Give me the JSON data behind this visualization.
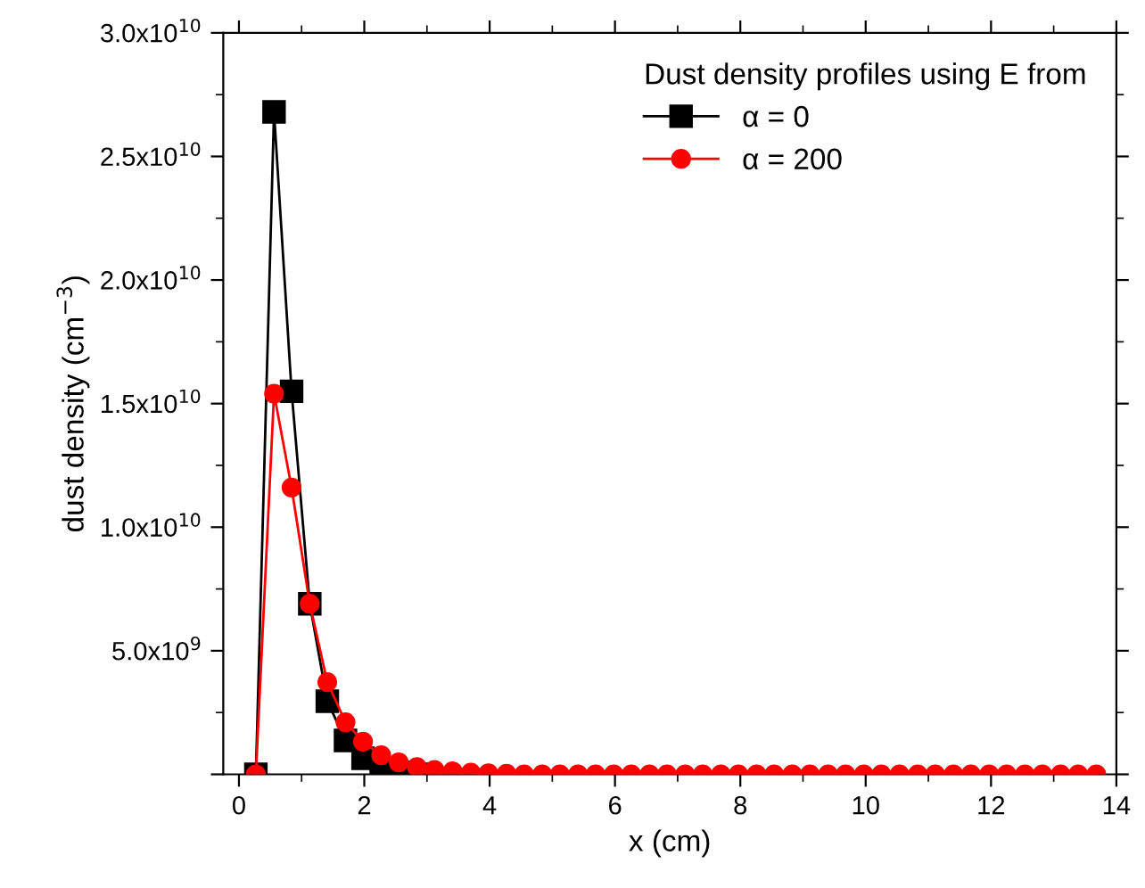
{
  "chart_data": {
    "type": "line",
    "xlabel": "x (cm)",
    "ylabel": "dust density (cm$^{−3}$)",
    "legend_title": "Dust density profiles using E from",
    "x": [
      0.27,
      0.56,
      0.84,
      1.13,
      1.41,
      1.7,
      1.98,
      2.27,
      2.55,
      2.84,
      3.12,
      3.41,
      3.7,
      3.98,
      4.27,
      4.55,
      4.84,
      5.12,
      5.41,
      5.69,
      5.98,
      6.26,
      6.55,
      6.83,
      7.12,
      7.4,
      7.69,
      7.97,
      8.26,
      8.54,
      8.83,
      9.11,
      9.4,
      9.68,
      9.97,
      10.25,
      10.54,
      10.83,
      11.11,
      11.4,
      11.68,
      11.97,
      12.25,
      12.54,
      12.82,
      13.11,
      13.39,
      13.68
    ],
    "series": [
      {
        "name": "α = 0",
        "color": "#000000",
        "marker": "square",
        "values": [
          0,
          26800000000.0,
          15500000000.0,
          6900000000.0,
          2960000000.0,
          1370000000.0,
          650000000.0,
          220000000.0,
          80000000.0,
          0,
          null,
          null,
          null,
          null,
          null,
          null,
          null,
          null,
          null,
          null,
          null,
          null,
          null,
          null,
          null,
          null,
          null,
          null,
          null,
          null,
          null,
          null,
          null,
          null,
          null,
          null,
          null,
          null,
          null,
          null,
          null,
          null,
          null,
          null,
          null,
          null,
          null,
          null
        ]
      },
      {
        "name": "α = 200",
        "color": "#ff0000",
        "marker": "circle",
        "values": [
          0,
          15400000000.0,
          11600000000.0,
          6900000000.0,
          3730000000.0,
          2110000000.0,
          1320000000.0,
          770000000.0,
          480000000.0,
          290000000.0,
          180000000.0,
          120000000.0,
          70000000.0,
          40000000.0,
          20000000.0,
          0,
          0,
          0,
          0,
          0,
          0,
          0,
          0,
          0,
          0,
          0,
          0,
          0,
          0,
          0,
          0,
          0,
          0,
          0,
          0,
          0,
          0,
          0,
          0,
          0,
          0,
          0,
          0,
          0,
          0,
          0,
          0,
          0
        ]
      }
    ],
    "xlim": [
      -0.25,
      14
    ],
    "xticks": [
      0,
      2,
      4,
      6,
      8,
      10,
      12,
      14
    ],
    "ylim": [
      0,
      30000000000.0
    ],
    "yticks": [
      {
        "value": 0,
        "label": null
      },
      {
        "value": 5000000000.0,
        "label": "5.0x10$^{9}$"
      },
      {
        "value": 10000000000.0,
        "label": "1.0x10$^{10}$"
      },
      {
        "value": 15000000000.0,
        "label": "1.5x10$^{10}$"
      },
      {
        "value": 20000000000.0,
        "label": "2.0x10$^{10}$"
      },
      {
        "value": 25000000000.0,
        "label": "2.5x10$^{10}$"
      },
      {
        "value": 30000000000.0,
        "label": "3.0x10$^{10}$"
      }
    ],
    "grid": false,
    "legend": "top right"
  }
}
